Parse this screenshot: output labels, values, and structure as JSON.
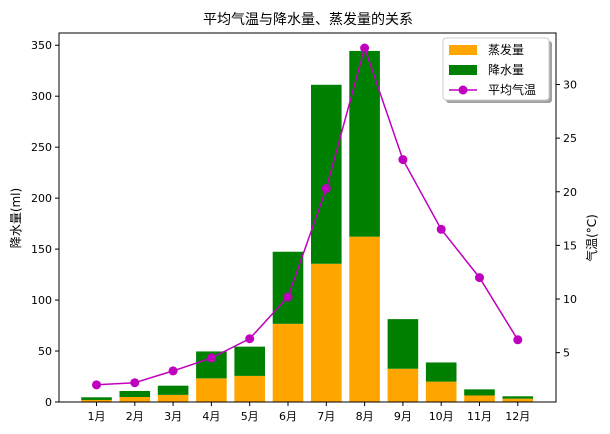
{
  "chart_data": {
    "type": "bar",
    "title": "平均气温与降水量、蒸发量的关系",
    "xlabel": "",
    "ylabel": "降水量(ml)",
    "ylabel_right": "气温(°C)",
    "categories": [
      "1月",
      "2月",
      "3月",
      "4月",
      "5月",
      "6月",
      "7月",
      "8月",
      "9月",
      "10月",
      "11月",
      "12月"
    ],
    "ylim": [
      0,
      362
    ],
    "yticks": [
      0,
      50,
      100,
      150,
      200,
      250,
      300,
      350
    ],
    "ylim_right": [
      0.4,
      34.8
    ],
    "yticks_right": [
      5,
      10,
      15,
      20,
      25,
      30
    ],
    "stacked": true,
    "series": [
      {
        "name": "蒸发量",
        "kind": "bar",
        "color": "#ffa500",
        "values": [
          2.0,
          4.9,
          7.0,
          23.2,
          25.6,
          76.7,
          135.6,
          162.2,
          32.6,
          20.0,
          6.4,
          3.3
        ]
      },
      {
        "name": "降水量",
        "kind": "bar",
        "color": "#008000",
        "values": [
          2.6,
          5.9,
          9.0,
          26.4,
          28.7,
          70.7,
          175.6,
          182.2,
          48.7,
          18.8,
          6.0,
          2.3
        ]
      },
      {
        "name": "平均气温",
        "kind": "line",
        "axis": "right",
        "color": "#bf00bf",
        "values": [
          2.0,
          2.2,
          3.3,
          4.5,
          6.3,
          10.2,
          20.3,
          33.4,
          23.0,
          16.5,
          12.0,
          6.2
        ]
      }
    ],
    "legend": {
      "position": "top-right",
      "entries": [
        "蒸发量",
        "降水量",
        "平均气温"
      ]
    },
    "grid": false
  }
}
